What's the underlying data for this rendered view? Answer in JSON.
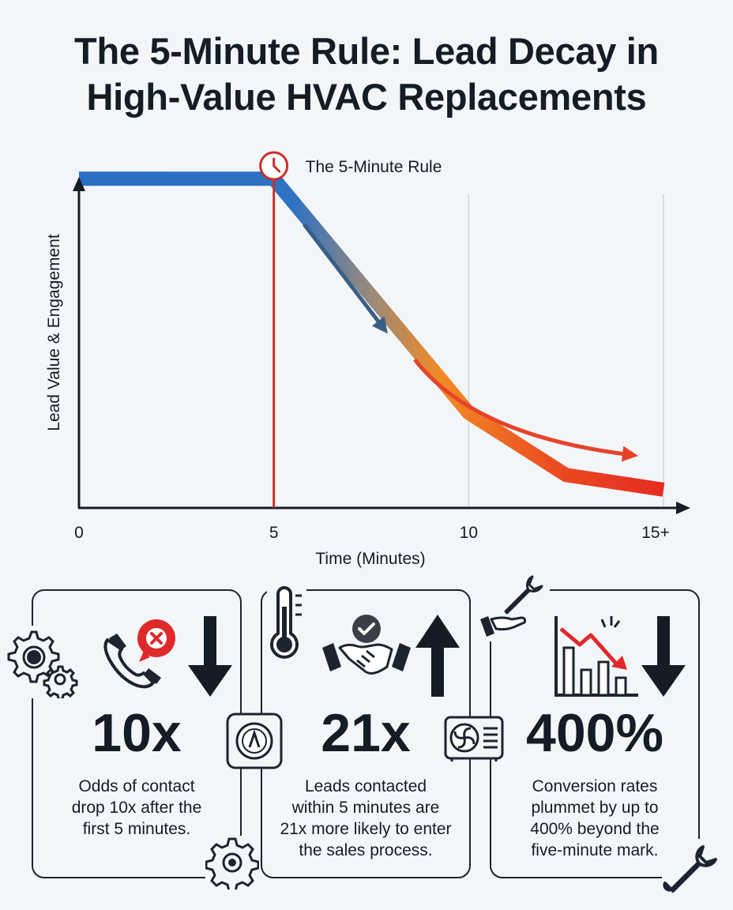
{
  "title_line1": "The 5-Minute Rule: Lead Decay in",
  "title_line2": "High-Value HVAC Replacements",
  "chart_data": {
    "type": "line",
    "ylabel": "Lead Value & Engagement",
    "xlabel": "Time (Minutes)",
    "x_ticks": [
      "0",
      "5",
      "10",
      "15+"
    ],
    "xlim": [
      0,
      15
    ],
    "ylim": [
      0,
      100
    ],
    "series": [
      {
        "x": [
          0,
          5,
          7.5,
          10,
          12.5,
          15
        ],
        "values": [
          90,
          90,
          58,
          26,
          9,
          5
        ]
      }
    ],
    "annotation": {
      "x": 5,
      "label": "The 5-Minute Rule"
    },
    "gridlines_x": [
      10,
      15
    ],
    "colors": {
      "start": "#2b6ec4",
      "mid": "#f28a24",
      "end": "#e52b21",
      "rule_line": "#c8302a"
    }
  },
  "stats": [
    {
      "value": "10x",
      "desc_lines": [
        "Odds of contact",
        "drop 10x after the",
        "first 5 minutes."
      ],
      "icons": [
        "gears-icon",
        "phone-declined-icon",
        "arrow-down-icon",
        "gauge-icon",
        "gear-icon"
      ]
    },
    {
      "value": "21x",
      "desc_lines": [
        "Leads contacted",
        "within 5 minutes are",
        "21x more likely to enter",
        "the sales process."
      ],
      "icons": [
        "thermometer-icon",
        "handshake-check-icon",
        "arrow-up-icon",
        "ac-unit-icon"
      ]
    },
    {
      "value": "400%",
      "desc_lines": [
        "Conversion rates",
        "plummet by up to",
        "400% beyond the",
        "five-minute mark."
      ],
      "icons": [
        "wrench-hand-icon",
        "declining-bar-chart-icon",
        "arrow-down-icon",
        "wrench-icon"
      ]
    }
  ]
}
